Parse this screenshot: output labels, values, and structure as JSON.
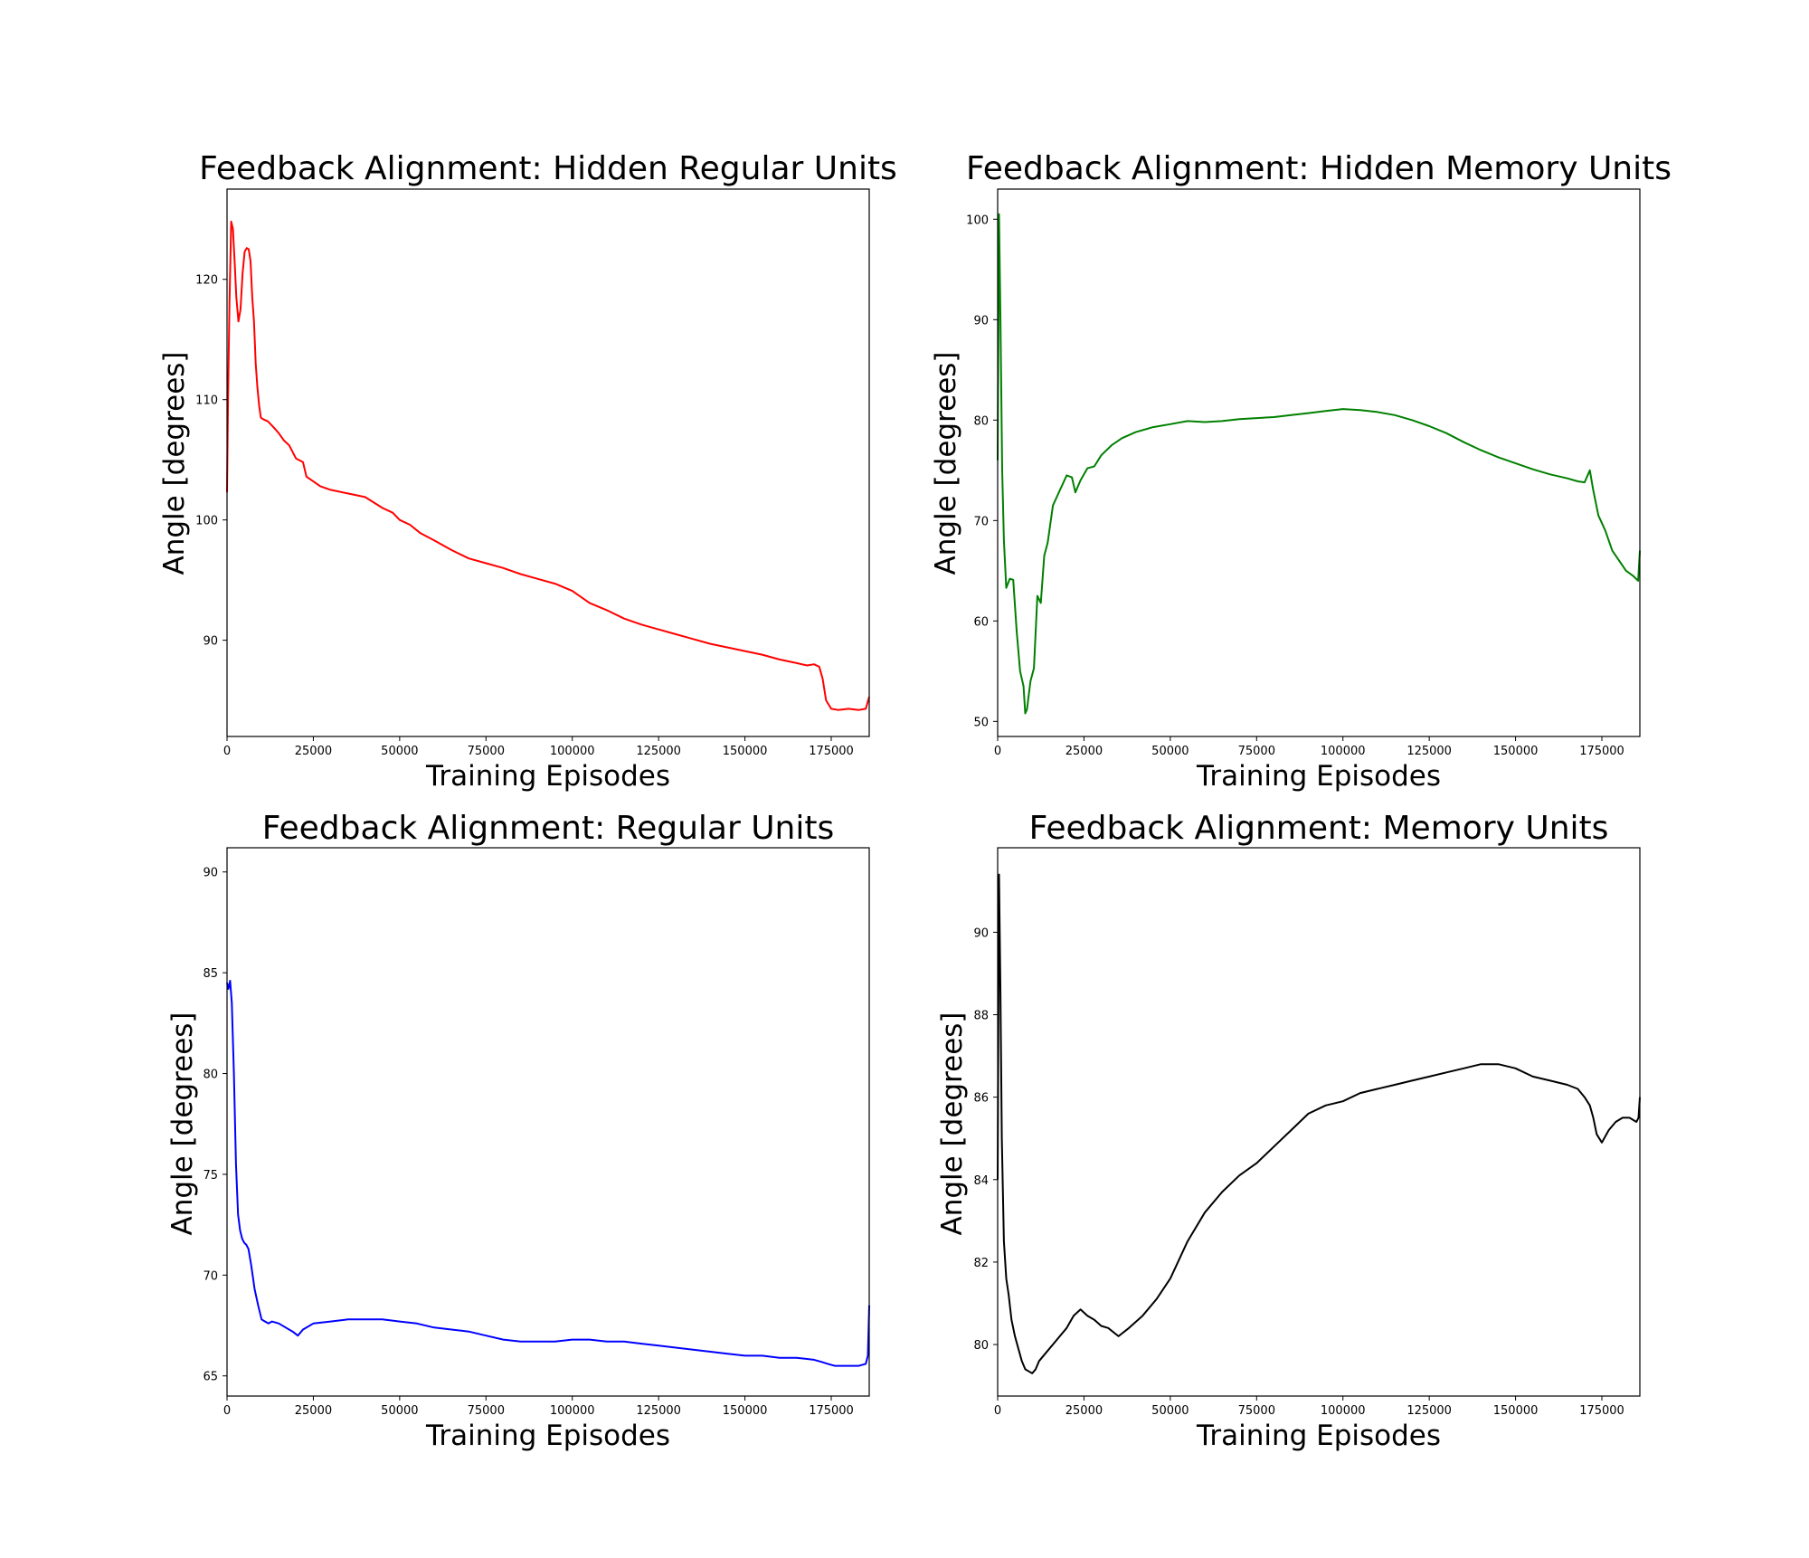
{
  "chart_data": [
    {
      "type": "line",
      "title": "Feedback Alignment: Hidden Regular Units",
      "xlabel": "Training Episodes",
      "ylabel": "Angle [degrees]",
      "xlim": [
        0,
        186000
      ],
      "ylim": [
        82,
        127.5
      ],
      "xticks": [
        0,
        25000,
        50000,
        75000,
        100000,
        125000,
        150000,
        175000
      ],
      "yticks": [
        90,
        100,
        110,
        120
      ],
      "grid": false,
      "series": [
        {
          "color": "#ff0000",
          "x": [
            0,
            300,
            700,
            1200,
            1700,
            2200,
            2700,
            3300,
            3900,
            4500,
            5100,
            5700,
            6300,
            6800,
            7300,
            7800,
            8300,
            8800,
            9300,
            9800,
            10300,
            11000,
            11800,
            12500,
            13500,
            15000,
            16500,
            18000,
            20000,
            22000,
            23000,
            25000,
            27000,
            30000,
            35000,
            40000,
            45000,
            48000,
            50000,
            53000,
            56000,
            60000,
            65000,
            70000,
            75000,
            80000,
            85000,
            90000,
            95000,
            100000,
            105000,
            110000,
            115000,
            120000,
            125000,
            130000,
            135000,
            140000,
            145000,
            150000,
            155000,
            160000,
            165000,
            168000,
            170000,
            171500,
            172500,
            173500,
            175000,
            177000,
            180000,
            183000,
            185000,
            186000
          ],
          "y": [
            102.3,
            110,
            118,
            124.8,
            124.2,
            121.5,
            118.5,
            116.5,
            117.5,
            120.5,
            122.3,
            122.6,
            122.5,
            121.5,
            118.5,
            116.5,
            113,
            111,
            109.5,
            108.5,
            108.4,
            108.3,
            108.2,
            108,
            107.7,
            107.2,
            106.6,
            106.2,
            105.1,
            104.8,
            103.6,
            103.2,
            102.8,
            102.5,
            102.2,
            101.9,
            101,
            100.6,
            100,
            99.6,
            98.9,
            98.3,
            97.5,
            96.8,
            96.4,
            96.0,
            95.5,
            95.1,
            94.7,
            94.1,
            93.1,
            92.5,
            91.8,
            91.3,
            90.9,
            90.5,
            90.1,
            89.7,
            89.4,
            89.1,
            88.8,
            88.4,
            88.1,
            87.9,
            88.0,
            87.8,
            86.8,
            85.0,
            84.3,
            84.2,
            84.3,
            84.2,
            84.3,
            85.3
          ]
        }
      ]
    },
    {
      "type": "line",
      "title": "Feedback Alignment: Hidden Memory Units",
      "xlabel": "Training Episodes",
      "ylabel": "Angle [degrees]",
      "xlim": [
        0,
        186000
      ],
      "ylim": [
        48.5,
        103
      ],
      "xticks": [
        0,
        25000,
        50000,
        75000,
        100000,
        125000,
        150000,
        175000
      ],
      "yticks": [
        50,
        60,
        70,
        80,
        90,
        100
      ],
      "grid": false,
      "series": [
        {
          "color": "#008000",
          "x": [
            0,
            400,
            800,
            1300,
            1800,
            2500,
            3500,
            4500,
            5500,
            6500,
            7500,
            8000,
            8500,
            9500,
            10500,
            11500,
            12500,
            13500,
            14500,
            16000,
            18000,
            20000,
            21500,
            22500,
            24000,
            26000,
            28000,
            30000,
            33000,
            36000,
            40000,
            45000,
            50000,
            55000,
            60000,
            65000,
            70000,
            75000,
            80000,
            85000,
            90000,
            95000,
            100000,
            105000,
            110000,
            115000,
            120000,
            125000,
            130000,
            135000,
            140000,
            145000,
            150000,
            155000,
            160000,
            165000,
            168000,
            170000,
            171500,
            172500,
            174000,
            176000,
            178000,
            180000,
            182000,
            184000,
            185500,
            186000
          ],
          "y": [
            76,
            100.5,
            90,
            75,
            68,
            63.3,
            64.2,
            64.1,
            59,
            55,
            53.5,
            50.8,
            51.2,
            54,
            55.3,
            62.5,
            61.8,
            66.5,
            67.8,
            71.5,
            73,
            74.5,
            74.3,
            72.8,
            74,
            75.2,
            75.4,
            76.5,
            77.5,
            78.2,
            78.8,
            79.3,
            79.6,
            79.9,
            79.8,
            79.9,
            80.1,
            80.2,
            80.3,
            80.5,
            80.7,
            80.9,
            81.1,
            81.0,
            80.8,
            80.5,
            80.0,
            79.4,
            78.7,
            77.8,
            77.0,
            76.3,
            75.7,
            75.1,
            74.6,
            74.2,
            73.9,
            73.8,
            75.0,
            73.0,
            70.5,
            69.0,
            67.0,
            66.0,
            65.0,
            64.5,
            64.0,
            67.0
          ]
        }
      ]
    },
    {
      "type": "line",
      "title": "Feedback Alignment: Regular Units",
      "xlabel": "Training Episodes",
      "ylabel": "Angle [degrees]",
      "xlim": [
        0,
        186000
      ],
      "ylim": [
        64,
        91.2
      ],
      "xticks": [
        0,
        25000,
        50000,
        75000,
        100000,
        125000,
        150000,
        175000
      ],
      "yticks": [
        65,
        70,
        75,
        80,
        85,
        90
      ],
      "grid": false,
      "series": [
        {
          "color": "#0000ff",
          "x": [
            0,
            400,
            900,
            1400,
            2000,
            2600,
            3200,
            3800,
            4400,
            5000,
            5600,
            6200,
            7000,
            8000,
            9000,
            10000,
            11000,
            12000,
            13000,
            15000,
            17000,
            19000,
            20500,
            22000,
            25000,
            30000,
            35000,
            40000,
            45000,
            50000,
            55000,
            60000,
            65000,
            70000,
            75000,
            80000,
            85000,
            90000,
            95000,
            100000,
            105000,
            110000,
            115000,
            120000,
            125000,
            130000,
            135000,
            140000,
            145000,
            150000,
            155000,
            160000,
            165000,
            170000,
            172000,
            174000,
            176000,
            178000,
            180000,
            183000,
            185000,
            185600,
            186000
          ],
          "y": [
            84.5,
            84.2,
            84.6,
            83.5,
            80,
            75.5,
            73,
            72.2,
            71.8,
            71.6,
            71.5,
            71.3,
            70.5,
            69.3,
            68.5,
            67.8,
            67.7,
            67.6,
            67.7,
            67.6,
            67.4,
            67.2,
            67.0,
            67.3,
            67.6,
            67.7,
            67.8,
            67.8,
            67.8,
            67.7,
            67.6,
            67.4,
            67.3,
            67.2,
            67.0,
            66.8,
            66.7,
            66.7,
            66.7,
            66.8,
            66.8,
            66.7,
            66.7,
            66.6,
            66.5,
            66.4,
            66.3,
            66.2,
            66.1,
            66.0,
            66.0,
            65.9,
            65.9,
            65.8,
            65.7,
            65.6,
            65.5,
            65.5,
            65.5,
            65.5,
            65.6,
            66.0,
            68.5
          ]
        }
      ]
    },
    {
      "type": "line",
      "title": "Feedback Alignment: Memory Units",
      "xlabel": "Training Episodes",
      "ylabel": "Angle [degrees]",
      "xlim": [
        0,
        186000
      ],
      "ylim": [
        78.75,
        92.05
      ],
      "xticks": [
        0,
        25000,
        50000,
        75000,
        100000,
        125000,
        150000,
        175000
      ],
      "yticks": [
        80,
        82,
        84,
        86,
        88,
        90
      ],
      "grid": false,
      "series": [
        {
          "color": "#000000",
          "x": [
            0,
            400,
            800,
            1200,
            1800,
            2500,
            3200,
            4000,
            5000,
            6000,
            7000,
            8000,
            9000,
            10000,
            11000,
            12000,
            14000,
            16000,
            18000,
            20000,
            22000,
            24000,
            26000,
            28000,
            30000,
            32000,
            35000,
            38000,
            42000,
            46000,
            50000,
            55000,
            60000,
            65000,
            70000,
            75000,
            80000,
            85000,
            90000,
            95000,
            100000,
            105000,
            110000,
            115000,
            120000,
            125000,
            130000,
            135000,
            140000,
            145000,
            150000,
            155000,
            160000,
            165000,
            168000,
            170000,
            171500,
            172500,
            173500,
            175000,
            177000,
            179000,
            181000,
            183000,
            185000,
            185600,
            186000
          ],
          "y": [
            84,
            91.4,
            88.5,
            85,
            82.5,
            81.6,
            81.2,
            80.6,
            80.2,
            79.9,
            79.6,
            79.4,
            79.35,
            79.3,
            79.4,
            79.6,
            79.8,
            80.0,
            80.2,
            80.4,
            80.7,
            80.85,
            80.7,
            80.6,
            80.45,
            80.4,
            80.2,
            80.4,
            80.7,
            81.1,
            81.6,
            82.5,
            83.2,
            83.7,
            84.1,
            84.4,
            84.8,
            85.2,
            85.6,
            85.8,
            85.9,
            86.1,
            86.2,
            86.3,
            86.4,
            86.5,
            86.6,
            86.7,
            86.8,
            86.8,
            86.7,
            86.5,
            86.4,
            86.3,
            86.2,
            86.0,
            85.8,
            85.5,
            85.1,
            84.9,
            85.2,
            85.4,
            85.5,
            85.5,
            85.4,
            85.5,
            86.0
          ]
        }
      ]
    }
  ]
}
